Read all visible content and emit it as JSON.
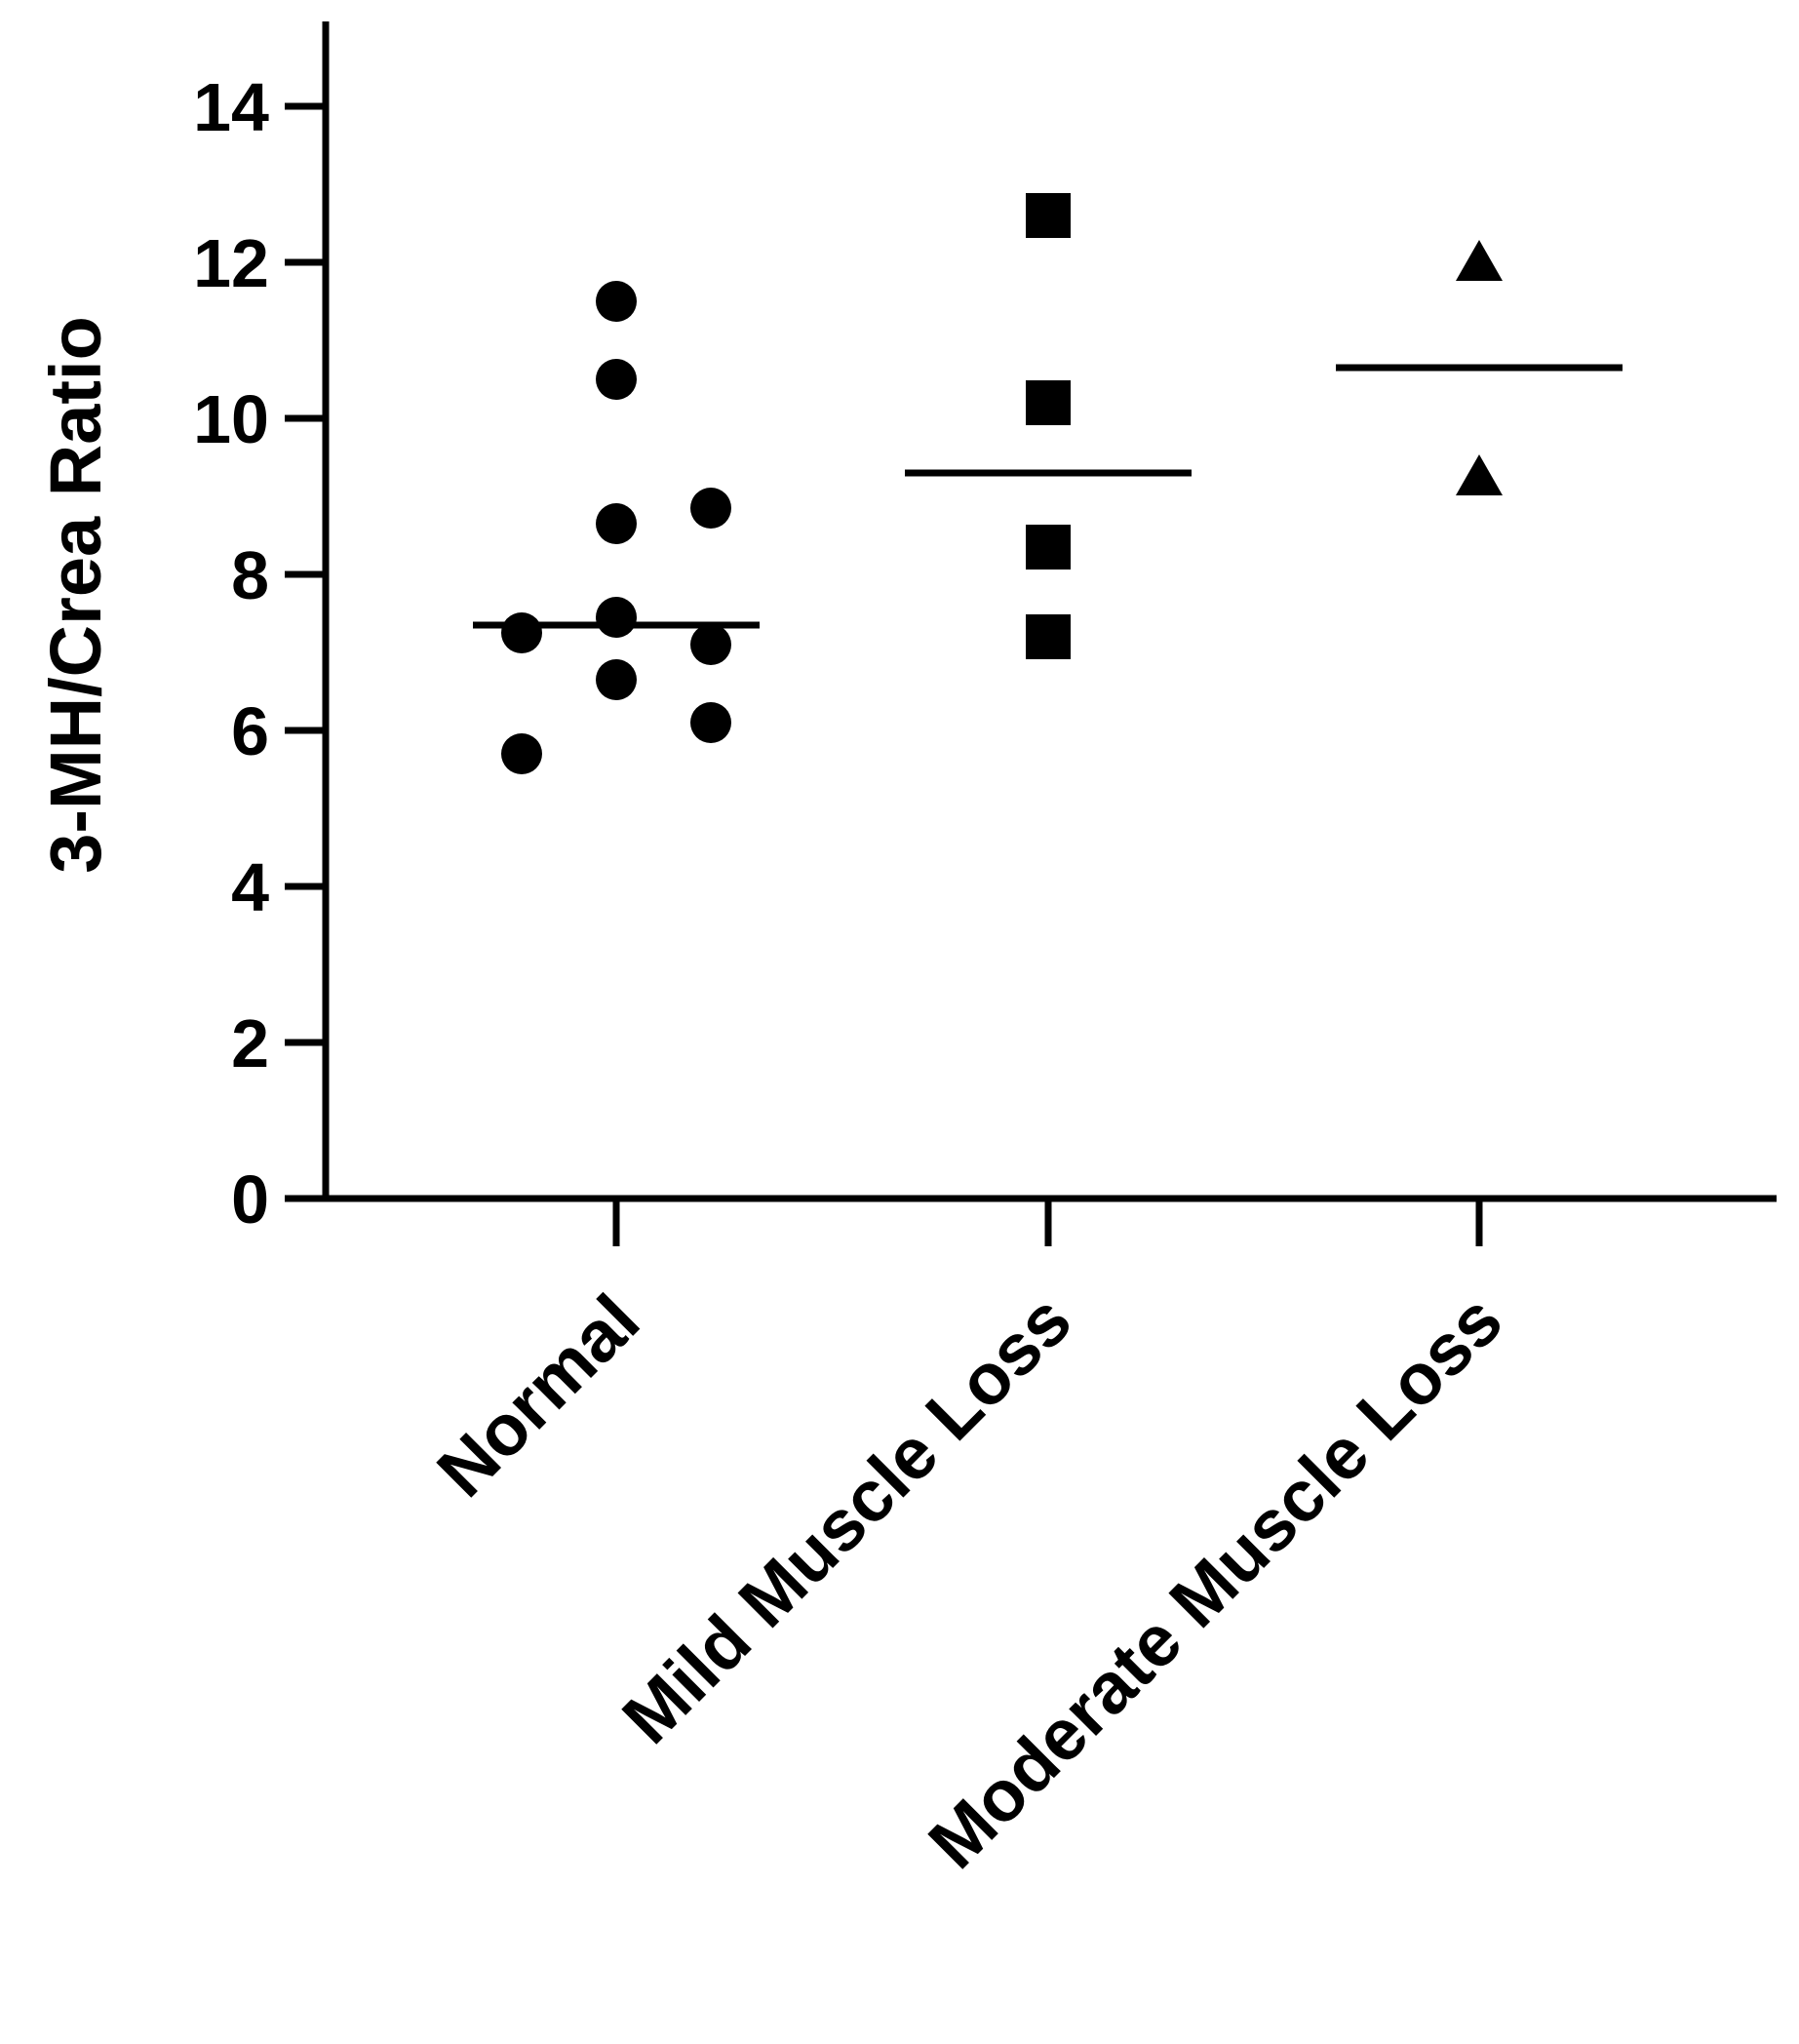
{
  "chart_data": {
    "type": "scatter",
    "title": "",
    "xlabel": "",
    "ylabel": "3-MH/Crea  Ratio",
    "ylim": [
      0,
      15
    ],
    "yticks": [
      0,
      2,
      4,
      6,
      8,
      10,
      12,
      14
    ],
    "grid": false,
    "legend": "none",
    "categories": [
      "Normal",
      "Mild Muscle Loss",
      "Moderate Muscle Loss"
    ],
    "series": [
      {
        "category": "Normal",
        "marker": "circle",
        "mean": 7.35,
        "points": [
          {
            "x_offset": 0,
            "y": 11.5
          },
          {
            "x_offset": 0,
            "y": 10.5
          },
          {
            "x_offset": 0,
            "y": 8.65
          },
          {
            "x_offset": 1,
            "y": 8.85
          },
          {
            "x_offset": 0,
            "y": 7.45
          },
          {
            "x_offset": -1,
            "y": 7.25
          },
          {
            "x_offset": 1,
            "y": 7.1
          },
          {
            "x_offset": 0,
            "y": 6.65
          },
          {
            "x_offset": 1,
            "y": 6.1
          },
          {
            "x_offset": -1,
            "y": 5.7
          }
        ]
      },
      {
        "category": "Mild Muscle Loss",
        "marker": "square",
        "mean": 9.3,
        "points": [
          {
            "x_offset": 0,
            "y": 12.6
          },
          {
            "x_offset": 0,
            "y": 10.2
          },
          {
            "x_offset": 0,
            "y": 8.35
          },
          {
            "x_offset": 0,
            "y": 7.2
          }
        ]
      },
      {
        "category": "Moderate Muscle Loss",
        "marker": "triangle",
        "mean": 10.65,
        "points": [
          {
            "x_offset": 0,
            "y": 12.0
          },
          {
            "x_offset": 0,
            "y": 9.25
          }
        ]
      }
    ],
    "colors": {
      "ink": "#000000",
      "background": "#ffffff"
    }
  }
}
